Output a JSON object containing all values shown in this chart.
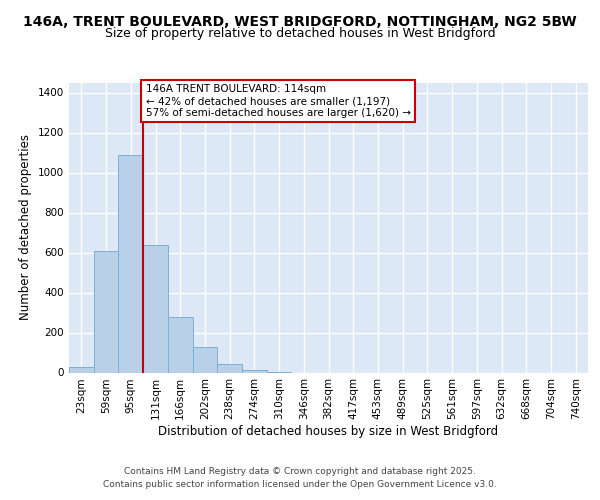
{
  "title_line1": "146A, TRENT BOULEVARD, WEST BRIDGFORD, NOTTINGHAM, NG2 5BW",
  "title_line2": "Size of property relative to detached houses in West Bridgford",
  "xlabel": "Distribution of detached houses by size in West Bridgford",
  "ylabel": "Number of detached properties",
  "bin_labels": [
    "23sqm",
    "59sqm",
    "95sqm",
    "131sqm",
    "166sqm",
    "202sqm",
    "238sqm",
    "274sqm",
    "310sqm",
    "346sqm",
    "382sqm",
    "417sqm",
    "453sqm",
    "489sqm",
    "525sqm",
    "561sqm",
    "597sqm",
    "632sqm",
    "668sqm",
    "704sqm",
    "740sqm"
  ],
  "bar_values": [
    30,
    610,
    1090,
    640,
    280,
    130,
    45,
    15,
    5,
    0,
    0,
    0,
    0,
    0,
    0,
    0,
    0,
    0,
    0,
    0,
    0
  ],
  "bar_color": "#b8d0e8",
  "bar_edge_color": "#7bafd4",
  "background_color": "#dce8f5",
  "grid_color": "#ffffff",
  "ylim": [
    0,
    1450
  ],
  "yticks": [
    0,
    200,
    400,
    600,
    800,
    1000,
    1200,
    1400
  ],
  "annotation_text": "146A TRENT BOULEVARD: 114sqm\n← 42% of detached houses are smaller (1,197)\n57% of semi-detached houses are larger (1,620) →",
  "vline_color": "#cc0000",
  "annotation_box_color": "#ffffff",
  "annotation_box_edge": "#cc0000",
  "footer_line1": "Contains HM Land Registry data © Crown copyright and database right 2025.",
  "footer_line2": "Contains public sector information licensed under the Open Government Licence v3.0.",
  "title_fontsize": 10,
  "subtitle_fontsize": 9,
  "axis_label_fontsize": 8.5,
  "tick_fontsize": 7.5,
  "annotation_fontsize": 7.5,
  "footer_fontsize": 6.5
}
